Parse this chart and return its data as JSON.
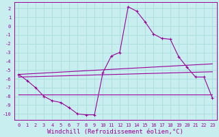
{
  "background_color": "#c8eef0",
  "grid_color": "#aadddd",
  "line_color": "#990099",
  "xlabel": "Windchill (Refroidissement éolien,°C)",
  "xlabel_fontsize": 6.5,
  "xtick_fontsize": 5.0,
  "ytick_fontsize": 5.0,
  "xlim": [
    -0.5,
    23.5
  ],
  "ylim": [
    -10.7,
    2.7
  ],
  "yticks": [
    2,
    1,
    0,
    -1,
    -2,
    -3,
    -4,
    -5,
    -6,
    -7,
    -8,
    -9,
    -10
  ],
  "xticks": [
    0,
    1,
    2,
    3,
    4,
    5,
    6,
    7,
    8,
    9,
    10,
    11,
    12,
    13,
    14,
    15,
    16,
    17,
    18,
    19,
    20,
    21,
    22,
    23
  ],
  "series": [
    {
      "x": [
        0,
        1,
        2,
        3,
        4,
        5,
        6,
        7,
        8,
        9,
        10,
        11,
        12,
        13,
        14,
        15,
        16,
        17,
        18,
        19,
        20,
        21,
        22,
        23
      ],
      "y": [
        -5.5,
        -6.2,
        -7.0,
        -8.0,
        -8.5,
        -8.7,
        -9.3,
        -10.0,
        -10.1,
        -10.1,
        -5.3,
        -3.4,
        -3.0,
        2.2,
        1.7,
        0.5,
        -0.9,
        -1.4,
        -1.5,
        -3.5,
        -4.7,
        -5.8,
        -5.8,
        -8.2
      ],
      "marker": true
    },
    {
      "x": [
        0,
        23
      ],
      "y": [
        -5.5,
        -4.3
      ],
      "marker": false
    },
    {
      "x": [
        0,
        23
      ],
      "y": [
        -5.8,
        -5.2
      ],
      "marker": false
    },
    {
      "x": [
        0,
        23
      ],
      "y": [
        -7.8,
        -7.8
      ],
      "marker": false
    }
  ]
}
